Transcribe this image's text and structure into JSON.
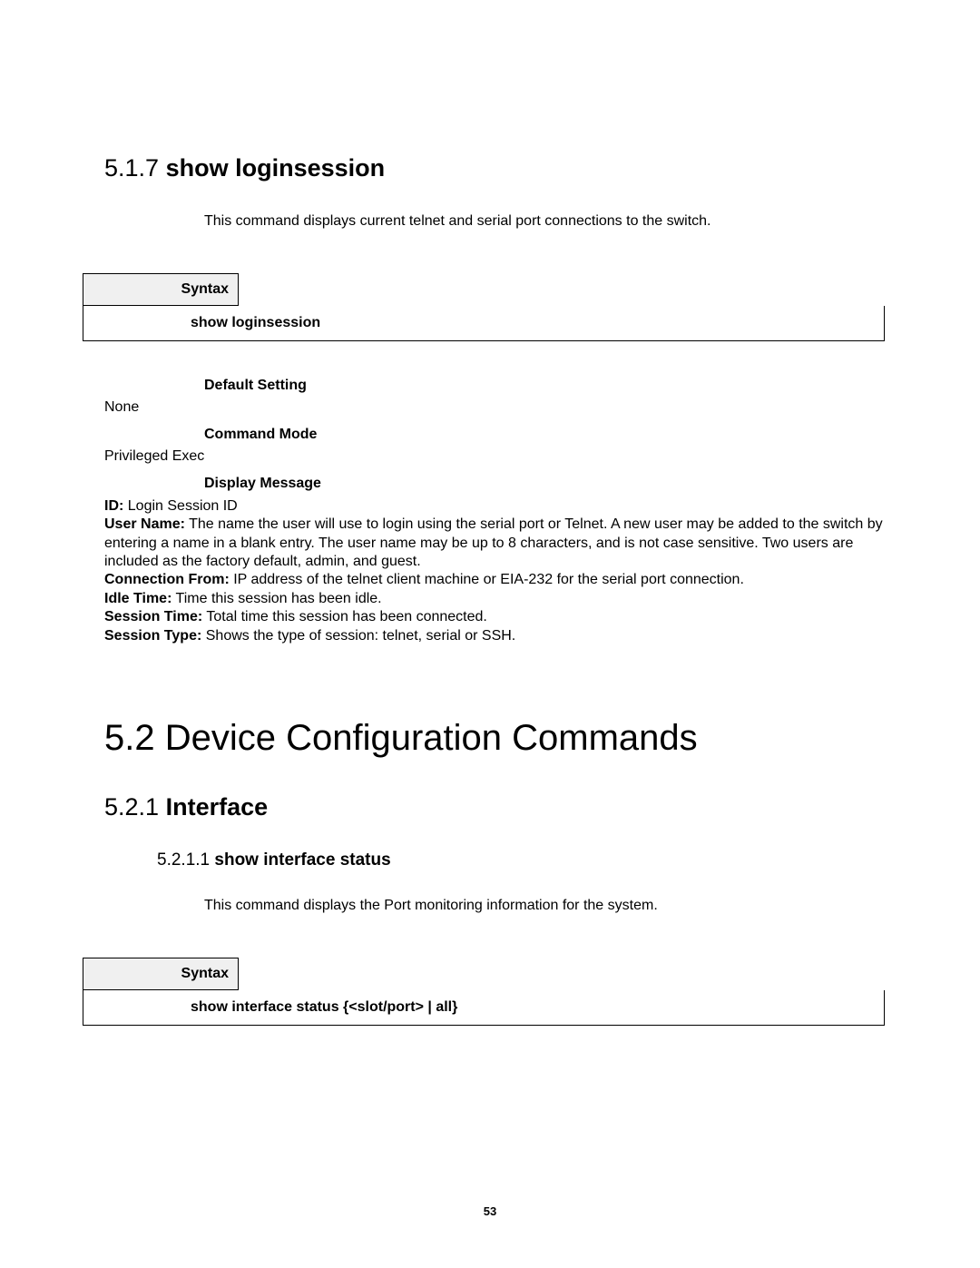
{
  "section517": {
    "num": "5.1.7",
    "title": "show loginsession",
    "description": "This command displays current telnet and serial port connections to the switch.",
    "syntax_label": "Syntax",
    "syntax_cmd": "show loginsession",
    "default_setting_label": "Default Setting",
    "default_setting_value": "None",
    "command_mode_label": "Command Mode",
    "command_mode_value": "Privileged Exec",
    "display_message_label": "Display Message",
    "msg_id_label": "ID:",
    "msg_id_text": " Login Session ID",
    "msg_user_label": "User Name:",
    "msg_user_text": " The name the user will use to login using the serial port or Telnet. A new user may be added to the switch by entering a name in a blank entry. The user name may be up to 8 characters, and is not case sensitive. Two users are included as the factory default, admin, and guest.",
    "msg_conn_label": "Connection From:",
    "msg_conn_text": " IP address of the telnet client machine or EIA-232 for the serial port connection.",
    "msg_idle_label": "Idle Time:",
    "msg_idle_text": " Time this session has been idle.",
    "msg_sess_label": "Session Time:",
    "msg_sess_text": " Total time this session has been connected.",
    "msg_type_label": "Session Type:",
    "msg_type_text": " Shows the type of session: telnet, serial or SSH."
  },
  "section52": {
    "num": "5.2",
    "title": " Device Configuration Commands"
  },
  "section521": {
    "num": "5.2.1",
    "title": "Interface"
  },
  "section5211": {
    "num": "5.2.1.1",
    "title": "show interface status",
    "description": "This command displays the Port monitoring information for the system.",
    "syntax_label": "Syntax",
    "syntax_cmd": "show interface status {<slot/port> | all}"
  },
  "page_number": "53"
}
